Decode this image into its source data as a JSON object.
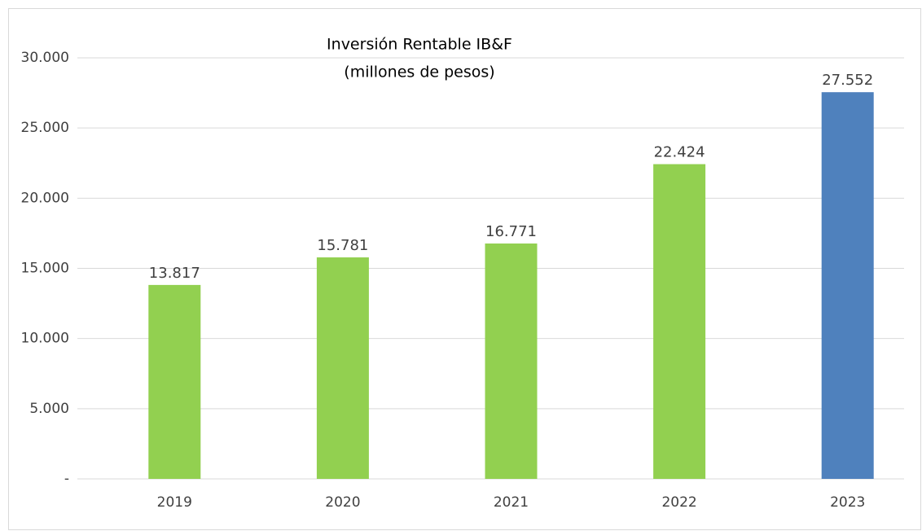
{
  "chart_data": {
    "type": "bar",
    "title": [
      "Inversión Rentable IB&F",
      "(millones de pesos)"
    ],
    "categories": [
      "2019",
      "2020",
      "2021",
      "2022",
      "2023"
    ],
    "values": [
      13817,
      15781,
      16771,
      22424,
      27552
    ],
    "value_labels": [
      "13.817",
      "15.781",
      "16.771",
      "22.424",
      "27.552"
    ],
    "colors": [
      "#92d050",
      "#92d050",
      "#92d050",
      "#92d050",
      "#4f81bd"
    ],
    "ylim": [
      0,
      30000
    ],
    "yticks": [
      {
        "value": 0,
        "label": "-"
      },
      {
        "value": 5000,
        "label": "5.000"
      },
      {
        "value": 10000,
        "label": "10.000"
      },
      {
        "value": 15000,
        "label": "15.000"
      },
      {
        "value": 20000,
        "label": "20.000"
      },
      {
        "value": 25000,
        "label": "25.000"
      },
      {
        "value": 30000,
        "label": "30.000"
      }
    ],
    "grid": true
  }
}
